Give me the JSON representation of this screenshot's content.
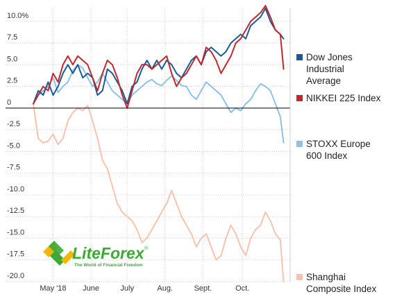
{
  "chart_data": {
    "type": "line",
    "title": "",
    "xlabel": "",
    "ylabel": "",
    "ylim": [
      -20,
      11.5
    ],
    "y_unit": "%",
    "y_ticks": [
      10,
      7.5,
      5,
      2.5,
      0,
      -2.5,
      -5,
      -7.5,
      -10,
      -12.5,
      -15,
      -17.5,
      -20
    ],
    "y_tick_labels": [
      "10.0%",
      "7.5",
      "5.0",
      "2.5",
      "0",
      "-2.5",
      "-5.0",
      "-7.5",
      "-10.0",
      "-12.5",
      "-15.0",
      "-17.5",
      "-20.0"
    ],
    "x_tick_labels": [
      "May '18",
      "June",
      "July",
      "Aug.",
      "Sept.",
      "Oct."
    ],
    "x_range": [
      0,
      156
    ],
    "x_ticks": [
      12,
      35,
      57,
      80,
      103,
      127
    ],
    "grid": true,
    "zero_line": true,
    "legend_placement": "right",
    "series": [
      {
        "name": "Shanghai Composite Index",
        "color": "#f5c4b1",
        "x": [
          0,
          3,
          6,
          9,
          12,
          15,
          18,
          21,
          24,
          27,
          30,
          33,
          36,
          39,
          42,
          45,
          48,
          51,
          54,
          57,
          60,
          63,
          66,
          69,
          72,
          75,
          78,
          81,
          84,
          87,
          90,
          93,
          96,
          99,
          102,
          105,
          108,
          111,
          114,
          117,
          120,
          123,
          126,
          129,
          132,
          135,
          138,
          141,
          144,
          147,
          150,
          152
        ],
        "values": [
          0.5,
          -3.5,
          -4,
          -3.8,
          -3,
          -4.2,
          -3.5,
          -1.5,
          -0.5,
          0,
          -0.3,
          0.3,
          -1.5,
          -3.5,
          -6,
          -7,
          -9,
          -11,
          -12,
          -12.5,
          -13,
          -14,
          -15.5,
          -15,
          -14,
          -13,
          -12,
          -11,
          -9.5,
          -11,
          -12.5,
          -13.5,
          -14.5,
          -16,
          -15,
          -14.5,
          -16,
          -17.5,
          -17,
          -15,
          -13.5,
          -14.5,
          -16,
          -17,
          -15,
          -14,
          -13.5,
          -12,
          -13,
          -14.5,
          -15.2,
          -20
        ]
      },
      {
        "name": "STOXX Europe 600 Index",
        "color": "#8fc1e3",
        "x": [
          0,
          3,
          6,
          9,
          12,
          15,
          18,
          21,
          24,
          27,
          30,
          33,
          36,
          39,
          42,
          45,
          48,
          51,
          54,
          57,
          60,
          63,
          66,
          69,
          72,
          75,
          78,
          81,
          84,
          87,
          90,
          93,
          96,
          99,
          102,
          105,
          108,
          111,
          114,
          117,
          120,
          123,
          126,
          129,
          132,
          135,
          138,
          141,
          144,
          147,
          150,
          152
        ],
        "values": [
          0.5,
          1.5,
          2,
          2.5,
          3.5,
          1.8,
          2.5,
          3,
          4.3,
          5,
          4.6,
          3.5,
          2.5,
          3,
          4,
          3,
          2,
          1.5,
          1,
          0.5,
          1.5,
          2,
          2.5,
          3,
          3.3,
          2.8,
          2.6,
          3.2,
          3.7,
          3.2,
          2.6,
          2.5,
          1.5,
          1,
          2,
          3,
          2.5,
          2,
          1.5,
          0.5,
          -0.5,
          0,
          -0.3,
          0.5,
          1,
          2,
          2.8,
          2.5,
          2,
          0.5,
          -1,
          -4
        ]
      },
      {
        "name": "Dow Jones Industrial Average",
        "color": "#1a5a96",
        "x": [
          0,
          3,
          6,
          9,
          12,
          15,
          18,
          21,
          24,
          27,
          30,
          33,
          36,
          39,
          42,
          45,
          48,
          51,
          54,
          57,
          60,
          63,
          66,
          69,
          72,
          75,
          78,
          81,
          84,
          87,
          90,
          93,
          96,
          99,
          102,
          105,
          108,
          111,
          114,
          117,
          120,
          123,
          126,
          129,
          132,
          135,
          138,
          141,
          144,
          147,
          150,
          152
        ],
        "values": [
          0.5,
          2,
          1.5,
          3,
          1.5,
          2.5,
          4,
          5,
          4,
          5,
          3.5,
          4,
          3.5,
          1.5,
          2,
          4.5,
          4,
          3,
          2,
          0.5,
          2.5,
          3,
          4.5,
          5.5,
          4.5,
          5.5,
          4.5,
          5.5,
          5,
          4,
          3.5,
          4.5,
          5.5,
          6,
          5,
          6.5,
          7,
          6.5,
          6,
          6.5,
          7.5,
          8,
          8.5,
          8,
          9.5,
          10,
          10.5,
          11.5,
          10,
          9,
          8.5,
          8
        ]
      },
      {
        "name": "NIKKEI 225 Index",
        "color": "#c1272d",
        "x": [
          0,
          3,
          6,
          9,
          12,
          15,
          18,
          21,
          24,
          27,
          30,
          33,
          36,
          39,
          42,
          45,
          48,
          51,
          54,
          57,
          60,
          63,
          66,
          69,
          72,
          75,
          78,
          81,
          84,
          87,
          90,
          93,
          96,
          99,
          102,
          105,
          108,
          111,
          114,
          117,
          120,
          123,
          126,
          129,
          132,
          135,
          138,
          141,
          144,
          147,
          150,
          152
        ],
        "values": [
          0.5,
          1.5,
          2.5,
          2,
          4,
          3,
          5,
          6,
          5,
          6,
          5.5,
          5,
          3.5,
          2,
          4,
          5.5,
          5,
          3.5,
          1.5,
          0,
          2,
          4,
          5,
          5,
          4.5,
          5,
          5.5,
          6,
          4,
          2.5,
          3.5,
          4,
          5,
          6,
          5,
          7,
          6.5,
          5.5,
          4,
          5,
          6,
          7.5,
          8,
          9,
          10,
          10.5,
          11,
          11.8,
          10.5,
          9,
          8.5,
          4.5
        ]
      }
    ],
    "legend": [
      {
        "label_lines": [
          "Dow Jones",
          "Industrial",
          "Average"
        ],
        "color": "#1a5a96"
      },
      {
        "label_lines": [
          "NIKKEI 225 Index"
        ],
        "color": "#c1272d"
      },
      {
        "label_lines": [
          "STOXX Europe",
          "600 Index"
        ],
        "color": "#8fc1e3"
      },
      {
        "label_lines": [
          "Shanghai",
          "Composite Index"
        ],
        "color": "#f5c4b1"
      }
    ]
  },
  "watermark": {
    "brand": "LiteForex",
    "tagline": "The World of Financial Freedom",
    "registered": "®"
  }
}
